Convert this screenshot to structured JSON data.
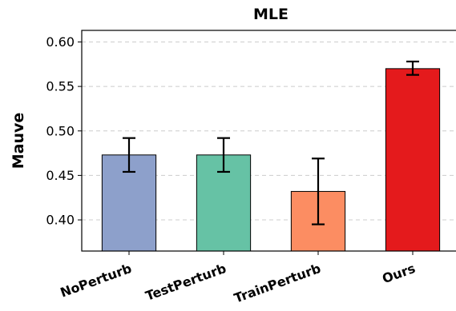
{
  "chart_data": {
    "type": "bar",
    "title": "MLE",
    "xlabel": "",
    "ylabel": "Mauve",
    "categories": [
      "NoPerturb",
      "TestPerturb",
      "TrainPerturb",
      "Ours"
    ],
    "values": [
      0.473,
      0.473,
      0.432,
      0.57
    ],
    "error_low": [
      0.454,
      0.454,
      0.395,
      0.563
    ],
    "error_high": [
      0.492,
      0.492,
      0.469,
      0.578
    ],
    "colors": [
      "#8da0cb",
      "#66c2a5",
      "#fc8d62",
      "#e41a1c"
    ],
    "ylim": [
      0.365,
      0.613
    ],
    "yticks": [
      0.4,
      0.45,
      0.5,
      0.55,
      0.6
    ],
    "ytick_labels": [
      "0.40",
      "0.45",
      "0.50",
      "0.55",
      "0.60"
    ],
    "grid": "y-dashed",
    "legend": "none"
  }
}
